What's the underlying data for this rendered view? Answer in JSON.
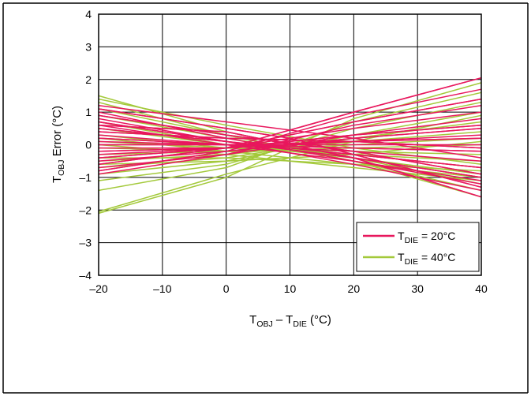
{
  "chart_data": {
    "type": "line",
    "title": "",
    "ylabel": {
      "main": "T",
      "sub": "OBJ",
      "rest": " Error (°C)"
    },
    "xlabel": {
      "t1": "T",
      "s1": "OBJ",
      "mid": " – T",
      "s2": "DIE",
      "rest": " (°C)"
    },
    "xlim": [
      -20,
      40
    ],
    "ylim": [
      -4,
      4
    ],
    "grid": true,
    "x_ticks": [
      "–20",
      "–10",
      "0",
      "10",
      "20",
      "30",
      "40"
    ],
    "y_ticks": [
      "4",
      "3",
      "2",
      "1",
      "0",
      "–1",
      "–2",
      "–3",
      "–4"
    ],
    "legend_position": "bottom-right",
    "legend": [
      {
        "main": "T",
        "sub": "DIE",
        "rest": " = 20°C",
        "color": "#e8175d"
      },
      {
        "main": "T",
        "sub": "DIE",
        "rest": " = 40°C",
        "color": "#a3c93a"
      }
    ],
    "x": [
      -20,
      40
    ],
    "series": [
      {
        "group": "TDIE = 20°C",
        "color": "#e8175d",
        "lines": [
          [
            [
              -20,
              1.1
            ],
            [
              -10,
              0.8
            ],
            [
              0,
              0.5
            ],
            [
              10,
              0.2
            ],
            [
              20,
              -0.3
            ],
            [
              30,
              -0.8
            ],
            [
              40,
              -1.3
            ]
          ],
          [
            [
              -20,
              1.0
            ],
            [
              0,
              0.2
            ],
            [
              20,
              -0.5
            ],
            [
              40,
              -1.1
            ]
          ],
          [
            [
              -20,
              0.9
            ],
            [
              0,
              0.3
            ],
            [
              20,
              -0.2
            ],
            [
              40,
              -0.9
            ]
          ],
          [
            [
              -20,
              0.8
            ],
            [
              0,
              0.1
            ],
            [
              20,
              -0.6
            ],
            [
              40,
              -1.4
            ]
          ],
          [
            [
              -20,
              0.7
            ],
            [
              0,
              0.1
            ],
            [
              20,
              -0.4
            ],
            [
              40,
              -1.0
            ]
          ],
          [
            [
              -20,
              0.6
            ],
            [
              0,
              0.0
            ],
            [
              20,
              -0.5
            ],
            [
              40,
              -1.2
            ]
          ],
          [
            [
              -20,
              0.5
            ],
            [
              0,
              0.1
            ],
            [
              20,
              -0.3
            ],
            [
              40,
              -0.7
            ]
          ],
          [
            [
              -20,
              0.3
            ],
            [
              0,
              0.0
            ],
            [
              20,
              -0.2
            ],
            [
              40,
              -0.5
            ]
          ],
          [
            [
              -20,
              0.2
            ],
            [
              0,
              0.0
            ],
            [
              20,
              -0.1
            ],
            [
              40,
              -0.2
            ]
          ],
          [
            [
              -20,
              0.1
            ],
            [
              0,
              0.0
            ],
            [
              20,
              0.0
            ],
            [
              40,
              0.0
            ]
          ],
          [
            [
              -20,
              0.0
            ],
            [
              0,
              0.0
            ],
            [
              20,
              0.1
            ],
            [
              40,
              0.2
            ]
          ],
          [
            [
              -20,
              -0.1
            ],
            [
              0,
              -0.1
            ],
            [
              20,
              0.1
            ],
            [
              40,
              0.3
            ]
          ],
          [
            [
              -20,
              -0.2
            ],
            [
              0,
              -0.1
            ],
            [
              20,
              0.3
            ],
            [
              40,
              0.6
            ]
          ],
          [
            [
              -20,
              -0.3
            ],
            [
              0,
              -0.1
            ],
            [
              20,
              0.5
            ],
            [
              40,
              1.0
            ]
          ],
          [
            [
              -20,
              -0.4
            ],
            [
              0,
              -0.1
            ],
            [
              20,
              0.7
            ],
            [
              40,
              1.4
            ]
          ],
          [
            [
              -20,
              -0.5
            ],
            [
              0,
              -0.2
            ],
            [
              20,
              0.9
            ],
            [
              40,
              1.7
            ]
          ],
          [
            [
              -20,
              -0.6
            ],
            [
              0,
              -0.1
            ],
            [
              20,
              1.0
            ],
            [
              40,
              2.05
            ]
          ],
          [
            [
              -20,
              -0.9
            ],
            [
              0,
              -0.3
            ],
            [
              20,
              0.3
            ],
            [
              40,
              0.8
            ]
          ],
          [
            [
              -20,
              -0.8
            ],
            [
              0,
              -0.2
            ],
            [
              20,
              0.2
            ],
            [
              40,
              0.5
            ]
          ],
          [
            [
              -20,
              1.2
            ],
            [
              0,
              0.7
            ],
            [
              20,
              0.2
            ],
            [
              40,
              -0.4
            ]
          ],
          [
            [
              -20,
              0.4
            ],
            [
              0,
              0.2
            ],
            [
              20,
              0.1
            ],
            [
              40,
              -0.1
            ]
          ],
          [
            [
              -20,
              -0.7
            ],
            [
              0,
              -0.3
            ],
            [
              20,
              0.6
            ],
            [
              40,
              1.2
            ]
          ],
          [
            [
              -20,
              0.6
            ],
            [
              0,
              0.4
            ],
            [
              20,
              -0.4
            ],
            [
              40,
              -1.6
            ]
          ]
        ]
      },
      {
        "group": "TDIE = 40°C",
        "color": "#a3c93a",
        "lines": [
          [
            [
              -20,
              1.5
            ],
            [
              0,
              0.4
            ],
            [
              20,
              -0.4
            ],
            [
              40,
              -1.0
            ]
          ],
          [
            [
              -20,
              1.3
            ],
            [
              0,
              0.3
            ],
            [
              20,
              -0.5
            ],
            [
              40,
              -1.4
            ]
          ],
          [
            [
              -20,
              1.1
            ],
            [
              0,
              0.3
            ],
            [
              20,
              -0.5
            ],
            [
              40,
              -1.6
            ]
          ],
          [
            [
              -20,
              0.9
            ],
            [
              0,
              0.2
            ],
            [
              20,
              -0.4
            ],
            [
              40,
              -1.2
            ]
          ],
          [
            [
              -20,
              0.7
            ],
            [
              0,
              0.0
            ],
            [
              20,
              -0.4
            ],
            [
              40,
              -0.9
            ]
          ],
          [
            [
              -20,
              0.5
            ],
            [
              0,
              0.0
            ],
            [
              20,
              -0.3
            ],
            [
              40,
              -0.7
            ]
          ],
          [
            [
              -20,
              0.3
            ],
            [
              0,
              -0.1
            ],
            [
              20,
              -0.3
            ],
            [
              40,
              -0.5
            ]
          ],
          [
            [
              -20,
              0.1
            ],
            [
              0,
              -0.1
            ],
            [
              20,
              -0.2
            ],
            [
              40,
              -0.3
            ]
          ],
          [
            [
              -20,
              -0.1
            ],
            [
              0,
              -0.2
            ],
            [
              20,
              -0.1
            ],
            [
              40,
              0.0
            ]
          ],
          [
            [
              -20,
              -0.3
            ],
            [
              0,
              -0.2
            ],
            [
              20,
              0.0
            ],
            [
              40,
              0.2
            ]
          ],
          [
            [
              -20,
              -0.5
            ],
            [
              0,
              -0.3
            ],
            [
              20,
              0.1
            ],
            [
              40,
              0.4
            ]
          ],
          [
            [
              -20,
              -0.7
            ],
            [
              0,
              -0.4
            ],
            [
              20,
              0.2
            ],
            [
              40,
              0.7
            ]
          ],
          [
            [
              -20,
              -0.9
            ],
            [
              0,
              -0.5
            ],
            [
              20,
              0.3
            ],
            [
              40,
              1.0
            ]
          ],
          [
            [
              -20,
              -1.1
            ],
            [
              0,
              -0.6
            ],
            [
              20,
              0.5
            ],
            [
              40,
              1.3
            ]
          ],
          [
            [
              -20,
              -1.4
            ],
            [
              0,
              -0.7
            ],
            [
              20,
              0.7
            ],
            [
              40,
              1.6
            ]
          ],
          [
            [
              -20,
              -2.1
            ],
            [
              0,
              -1.0
            ],
            [
              20,
              0.8
            ],
            [
              40,
              1.9
            ]
          ],
          [
            [
              -20,
              -2.05
            ],
            [
              0,
              -0.9
            ],
            [
              20,
              0.1
            ],
            [
              40,
              0.9
            ]
          ],
          [
            [
              -20,
              0.2
            ],
            [
              0,
              -0.2
            ],
            [
              20,
              -0.6
            ],
            [
              40,
              -1.0
            ]
          ],
          [
            [
              -20,
              -0.4
            ],
            [
              0,
              -0.4
            ],
            [
              20,
              -0.6
            ],
            [
              40,
              -0.8
            ]
          ],
          [
            [
              -20,
              0.0
            ],
            [
              0,
              -0.3
            ],
            [
              20,
              -0.7
            ],
            [
              40,
              -1.1
            ]
          ],
          [
            [
              -20,
              1.4
            ],
            [
              0,
              0.6
            ],
            [
              20,
              -0.1
            ],
            [
              40,
              -0.6
            ]
          ],
          [
            [
              -20,
              -0.6
            ],
            [
              0,
              -0.5
            ],
            [
              20,
              -0.3
            ],
            [
              40,
              0.1
            ]
          ]
        ]
      }
    ]
  }
}
